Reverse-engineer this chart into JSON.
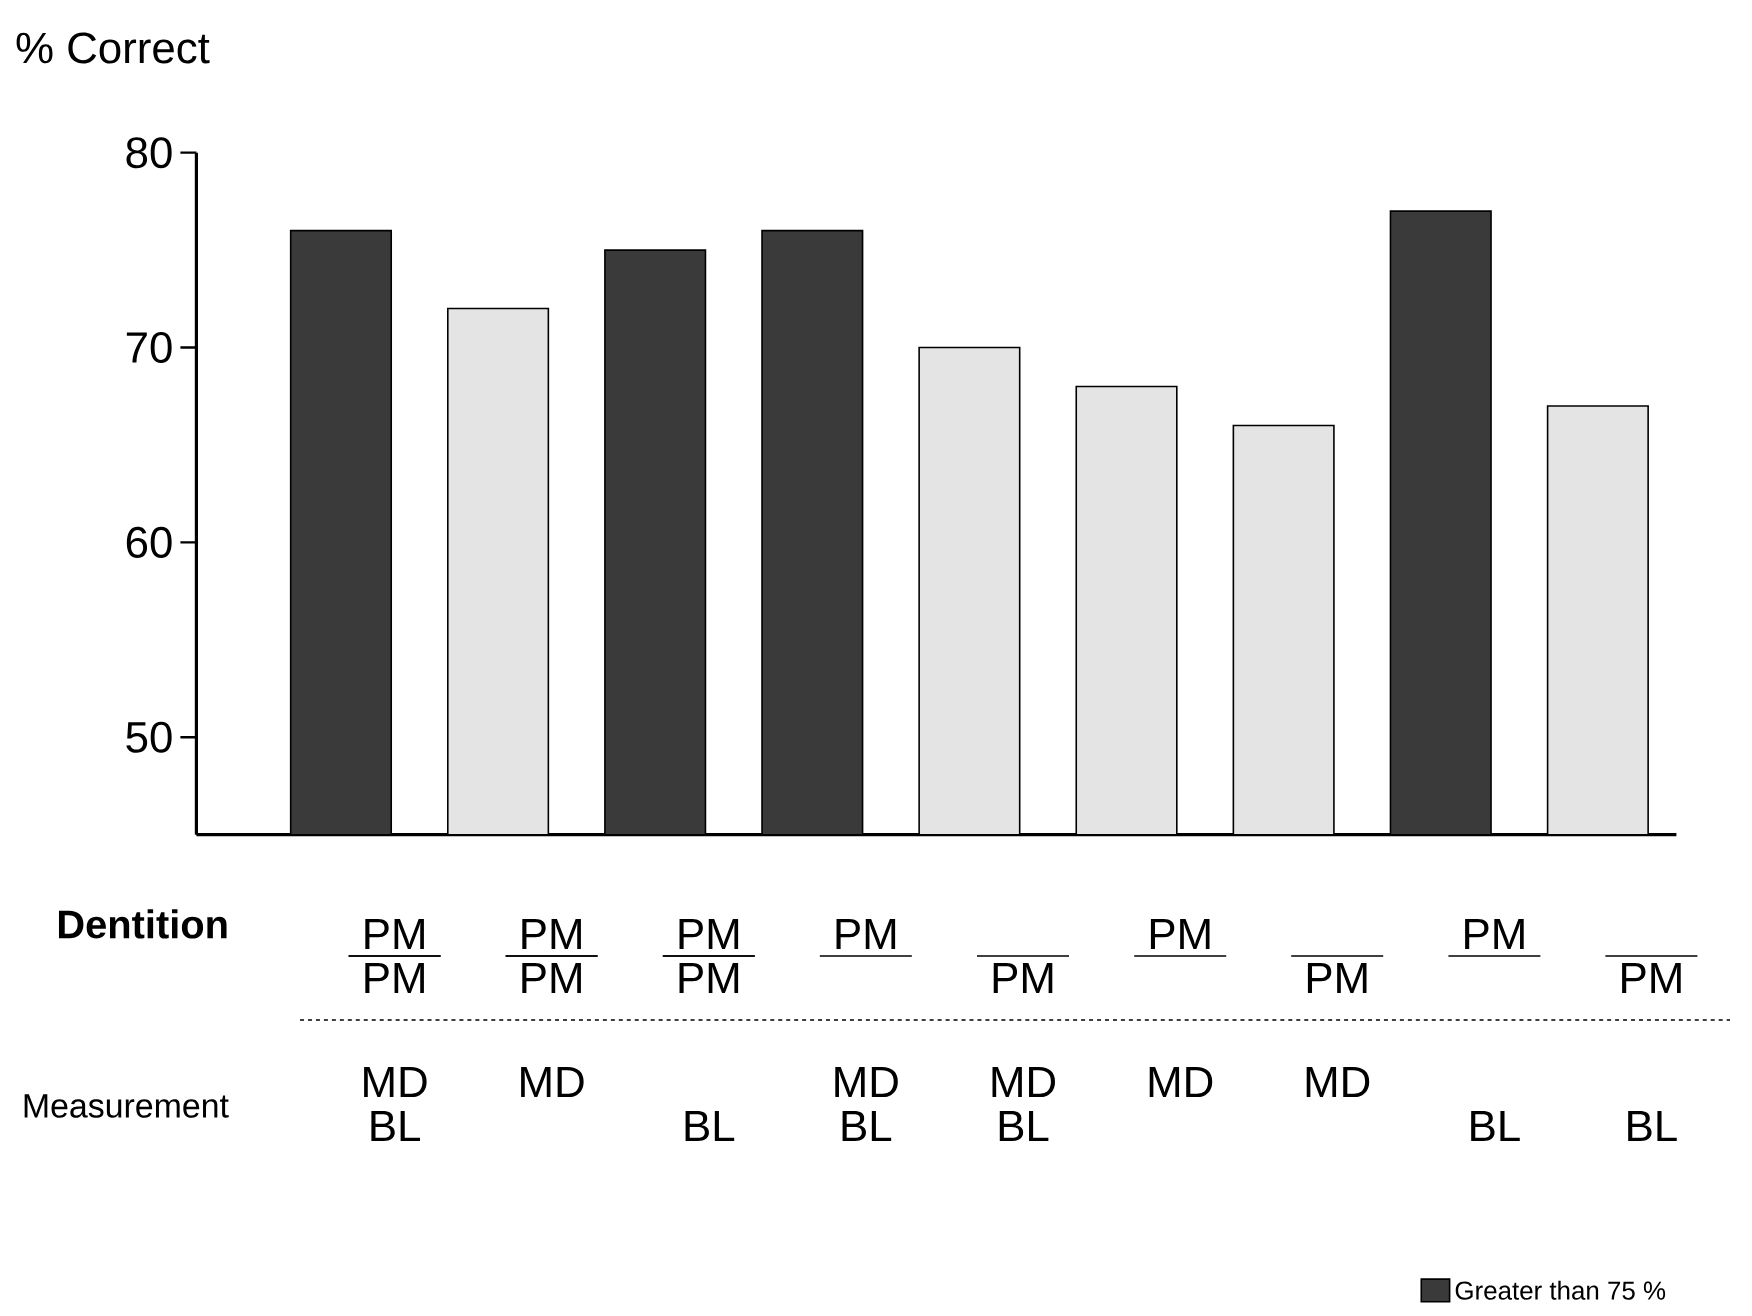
{
  "chart_data": {
    "type": "bar",
    "ylabel": "% Correct",
    "categories": [
      null,
      null,
      null,
      null,
      null,
      null,
      null,
      null,
      null
    ],
    "series": [
      {
        "name": "Greater than 75 %",
        "color": "#3a3a3a",
        "values": [
          76,
          null,
          75,
          76,
          null,
          null,
          null,
          77,
          null
        ]
      },
      {
        "color": "#e4e4e4",
        "values": [
          null,
          72,
          null,
          null,
          70,
          68,
          66,
          null,
          67
        ]
      }
    ],
    "ylim": [
      45,
      80
    ],
    "yticks": [
      50,
      60,
      70,
      80
    ],
    "tick_labels": "y",
    "legend": "bottom right",
    "annotations": [
      "Dentition",
      "Measurement",
      "PM",
      "PM",
      "MD",
      "BL",
      "PM",
      "PM",
      "MD",
      "PM",
      "PM",
      "BL",
      "PM",
      "MD",
      "BL",
      "PM",
      "MD",
      "BL",
      "PM",
      "MD",
      "PM",
      "MD",
      "PM",
      "BL",
      "PM",
      "BL"
    ]
  }
}
